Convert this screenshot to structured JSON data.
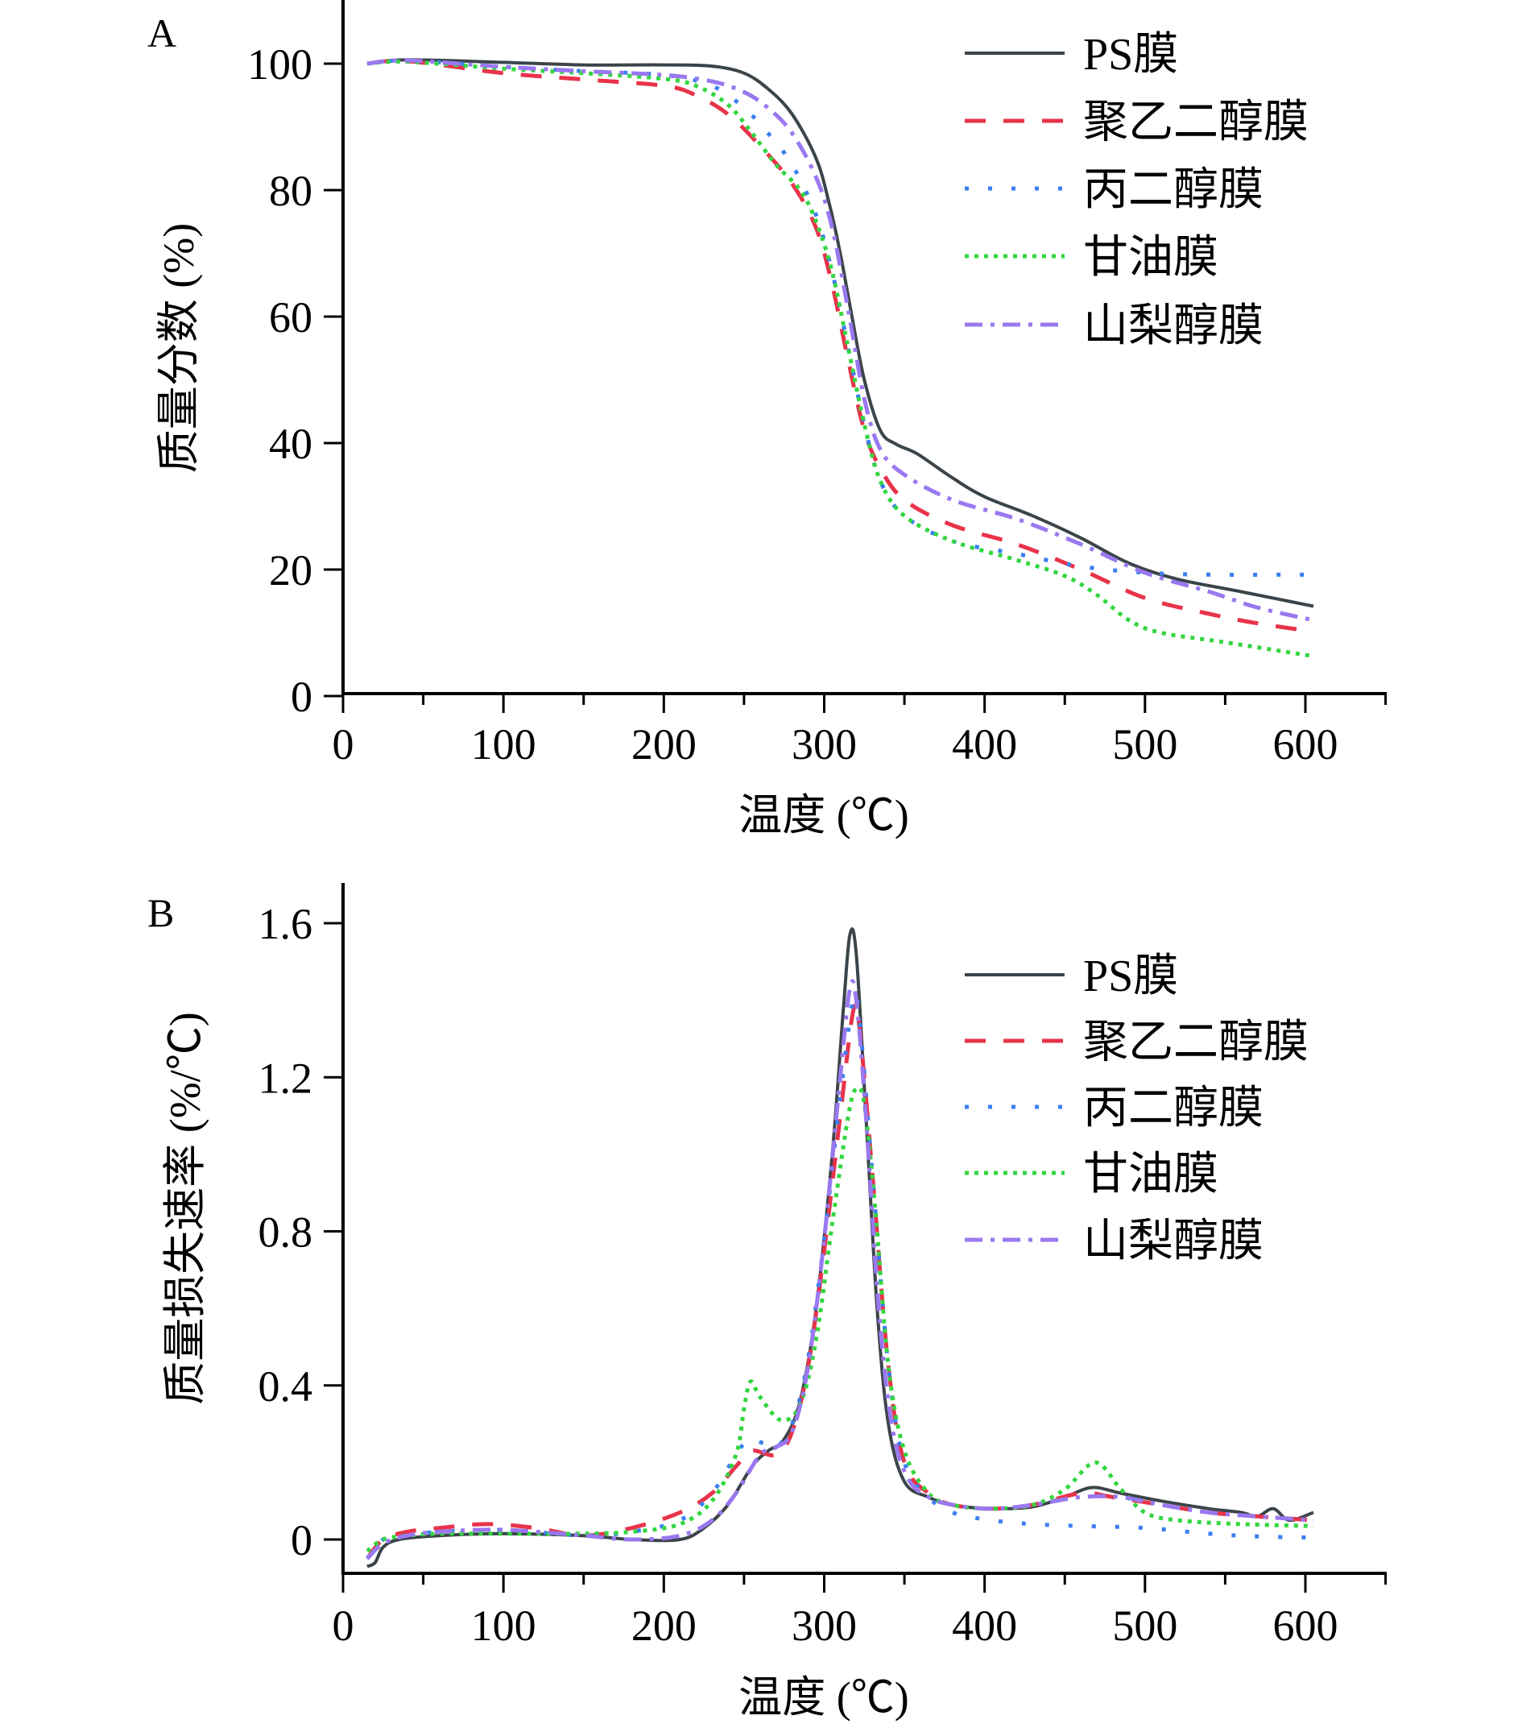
{
  "chart_data": [
    {
      "panel_label": "A",
      "type": "line",
      "title": "",
      "xlabel": "温度 (℃)",
      "ylabel": "质量分数 (%)",
      "xlim": [
        0,
        650
      ],
      "ylim": [
        0,
        110
      ],
      "xticks": [
        0,
        100,
        200,
        300,
        400,
        500,
        600
      ],
      "xtick_labels": [
        "0",
        "100",
        "200",
        "300",
        "400",
        "500",
        "600"
      ],
      "yticks": [
        0,
        20,
        40,
        60,
        80,
        100
      ],
      "ytick_labels": [
        "0",
        "20",
        "40",
        "60",
        "80",
        "100"
      ],
      "grid": false,
      "legend_position": "top-right",
      "series": [
        {
          "name": "PS膜",
          "color": "#3b4449",
          "dash": "solid",
          "x": [
            15,
            40,
            100,
            150,
            200,
            230,
            250,
            265,
            280,
            295,
            303,
            310,
            317,
            325,
            335,
            345,
            358,
            380,
            400,
            430,
            460,
            490,
            520,
            560,
            605
          ],
          "y": [
            100,
            100.6,
            100.2,
            99.8,
            99.8,
            99.6,
            98.5,
            96,
            92,
            85,
            78,
            70,
            60.4,
            50,
            42,
            39.8,
            38.3,
            34.5,
            31.5,
            28.5,
            25,
            21,
            18.5,
            16.5,
            14.2
          ]
        },
        {
          "name": "聚乙二醇膜",
          "color": "#e8334a",
          "dash": "dashed",
          "x": [
            15,
            40,
            100,
            150,
            200,
            220,
            240,
            260,
            280,
            295,
            305,
            315,
            325,
            335,
            350,
            380,
            420,
            460,
            500,
            540,
            570,
            605
          ],
          "y": [
            100,
            100.4,
            98.5,
            97.5,
            96.5,
            95,
            92,
            87,
            81,
            74,
            65,
            53,
            42,
            36,
            31,
            27,
            24,
            20,
            15.5,
            13,
            11.5,
            10.2
          ]
        },
        {
          "name": "丙二醇膜",
          "color": "#3a7ff0",
          "dash": "dotted",
          "x": [
            15,
            40,
            100,
            150,
            200,
            230,
            250,
            265,
            280,
            295,
            305,
            315,
            325,
            335,
            350,
            380,
            420,
            460,
            500,
            540,
            605
          ],
          "y": [
            100,
            100.5,
            99.5,
            98.8,
            98.2,
            96.5,
            93,
            89,
            84,
            76,
            67,
            55,
            43,
            34,
            28.5,
            24.5,
            22.5,
            20.5,
            19.5,
            19.2,
            19.2
          ]
        },
        {
          "name": "甘油膜",
          "color": "#33d640",
          "dash": "dotted-fine",
          "x": [
            15,
            40,
            100,
            150,
            200,
            220,
            240,
            255,
            270,
            285,
            295,
            305,
            315,
            325,
            335,
            350,
            380,
            420,
            450,
            470,
            490,
            510,
            550,
            605
          ],
          "y": [
            100,
            100.3,
            99.2,
            98.5,
            97.6,
            96.5,
            93.5,
            89,
            84,
            80,
            75,
            67,
            55,
            43,
            34,
            28.5,
            24.5,
            21.5,
            19,
            16,
            12,
            10,
            8.5,
            6.3
          ]
        },
        {
          "name": "山梨醇膜",
          "color": "#9a78f0",
          "dash": "dash-dot",
          "x": [
            15,
            40,
            100,
            150,
            200,
            230,
            250,
            265,
            280,
            295,
            305,
            315,
            325,
            335,
            350,
            380,
            420,
            460,
            500,
            540,
            570,
            605
          ],
          "y": [
            100,
            100.5,
            99.5,
            98.8,
            98.2,
            97.2,
            95.5,
            93,
            89,
            82,
            74,
            61,
            47,
            39,
            35,
            31,
            28,
            24,
            19.5,
            16.5,
            14,
            12
          ]
        }
      ]
    },
    {
      "panel_label": "B",
      "type": "line",
      "title": "",
      "xlabel": "温度 (℃)",
      "ylabel": "质量损失速率 (%/℃)",
      "xlim": [
        0,
        650
      ],
      "ylim": [
        -0.1,
        1.7
      ],
      "xticks": [
        0,
        100,
        200,
        300,
        400,
        500,
        600
      ],
      "xtick_labels": [
        "0",
        "100",
        "200",
        "300",
        "400",
        "500",
        "600"
      ],
      "yticks": [
        0,
        0.4,
        0.8,
        1.2,
        1.6
      ],
      "ytick_labels": [
        "0",
        "0.4",
        "0.8",
        "1.2",
        "1.6"
      ],
      "grid": false,
      "legend_position": "top-right",
      "series": [
        {
          "name": "PS膜",
          "color": "#3b4449",
          "dash": "solid",
          "x": [
            15,
            20,
            25,
            35,
            60,
            100,
            150,
            180,
            210,
            225,
            240,
            255,
            265,
            275,
            285,
            295,
            305,
            312,
            316,
            320,
            326,
            333,
            340,
            350,
            365,
            380,
            404,
            430,
            450,
            467,
            485,
            510,
            540,
            560,
            570,
            580,
            590,
            605
          ],
          "y": [
            -0.07,
            -0.06,
            -0.02,
            0.0,
            0.01,
            0.015,
            0.01,
            0.0,
            0.0,
            0.03,
            0.09,
            0.19,
            0.23,
            0.26,
            0.36,
            0.6,
            1.0,
            1.38,
            1.57,
            1.52,
            1.1,
            0.6,
            0.3,
            0.15,
            0.11,
            0.09,
            0.08,
            0.085,
            0.11,
            0.135,
            0.12,
            0.1,
            0.08,
            0.07,
            0.06,
            0.08,
            0.05,
            0.07
          ]
        },
        {
          "name": "聚乙二醇膜",
          "color": "#e8334a",
          "dash": "dashed",
          "x": [
            15,
            25,
            40,
            60,
            90,
            120,
            150,
            180,
            210,
            230,
            245,
            255,
            270,
            280,
            290,
            300,
            310,
            318,
            322,
            330,
            340,
            350,
            365,
            380,
            404,
            430,
            460,
            480,
            510,
            540,
            570,
            605
          ],
          "y": [
            -0.05,
            0.0,
            0.02,
            0.03,
            0.04,
            0.03,
            0.01,
            0.03,
            0.07,
            0.12,
            0.19,
            0.23,
            0.22,
            0.28,
            0.45,
            0.75,
            1.1,
            1.37,
            1.33,
            0.95,
            0.45,
            0.2,
            0.12,
            0.09,
            0.08,
            0.09,
            0.12,
            0.11,
            0.09,
            0.07,
            0.06,
            0.05
          ]
        },
        {
          "name": "丙二醇膜",
          "color": "#3a7ff0",
          "dash": "dotted",
          "x": [
            15,
            25,
            40,
            60,
            100,
            150,
            180,
            210,
            230,
            245,
            253,
            262,
            270,
            280,
            290,
            300,
            310,
            318,
            322,
            330,
            340,
            350,
            365,
            380,
            404,
            430,
            460,
            500,
            540,
            570,
            605
          ],
          "y": [
            -0.05,
            0.0,
            0.01,
            0.02,
            0.025,
            0.01,
            0.02,
            0.05,
            0.12,
            0.22,
            0.26,
            0.25,
            0.24,
            0.3,
            0.47,
            0.78,
            1.15,
            1.4,
            1.35,
            0.95,
            0.45,
            0.2,
            0.11,
            0.07,
            0.05,
            0.04,
            0.035,
            0.03,
            0.015,
            0.008,
            0.005
          ]
        },
        {
          "name": "甘油膜",
          "color": "#33d640",
          "dash": "dotted-fine",
          "x": [
            15,
            25,
            40,
            60,
            100,
            150,
            180,
            210,
            230,
            245,
            250,
            254,
            260,
            273,
            285,
            295,
            305,
            315,
            320,
            325,
            332,
            340,
            350,
            365,
            380,
            404,
            430,
            450,
            469,
            485,
            500,
            520,
            560,
            605
          ],
          "y": [
            -0.03,
            0.0,
            0.01,
            0.015,
            0.015,
            0.015,
            0.02,
            0.04,
            0.1,
            0.22,
            0.34,
            0.41,
            0.37,
            0.31,
            0.35,
            0.52,
            0.82,
            1.1,
            1.17,
            1.13,
            0.85,
            0.45,
            0.23,
            0.12,
            0.09,
            0.08,
            0.09,
            0.13,
            0.2,
            0.13,
            0.07,
            0.05,
            0.04,
            0.035
          ]
        },
        {
          "name": "山梨醇膜",
          "color": "#9a78f0",
          "dash": "dash-dot",
          "x": [
            15,
            25,
            40,
            60,
            100,
            150,
            180,
            210,
            230,
            245,
            260,
            270,
            280,
            290,
            300,
            310,
            316,
            320,
            326,
            334,
            342,
            352,
            365,
            380,
            404,
            430,
            460,
            485,
            510,
            540,
            570,
            605
          ],
          "y": [
            -0.05,
            -0.01,
            0.01,
            0.02,
            0.025,
            0.01,
            0.0,
            0.01,
            0.05,
            0.12,
            0.22,
            0.24,
            0.28,
            0.45,
            0.78,
            1.2,
            1.43,
            1.4,
            1.1,
            0.6,
            0.3,
            0.16,
            0.11,
            0.09,
            0.08,
            0.09,
            0.11,
            0.11,
            0.09,
            0.07,
            0.06,
            0.05
          ]
        }
      ]
    }
  ]
}
